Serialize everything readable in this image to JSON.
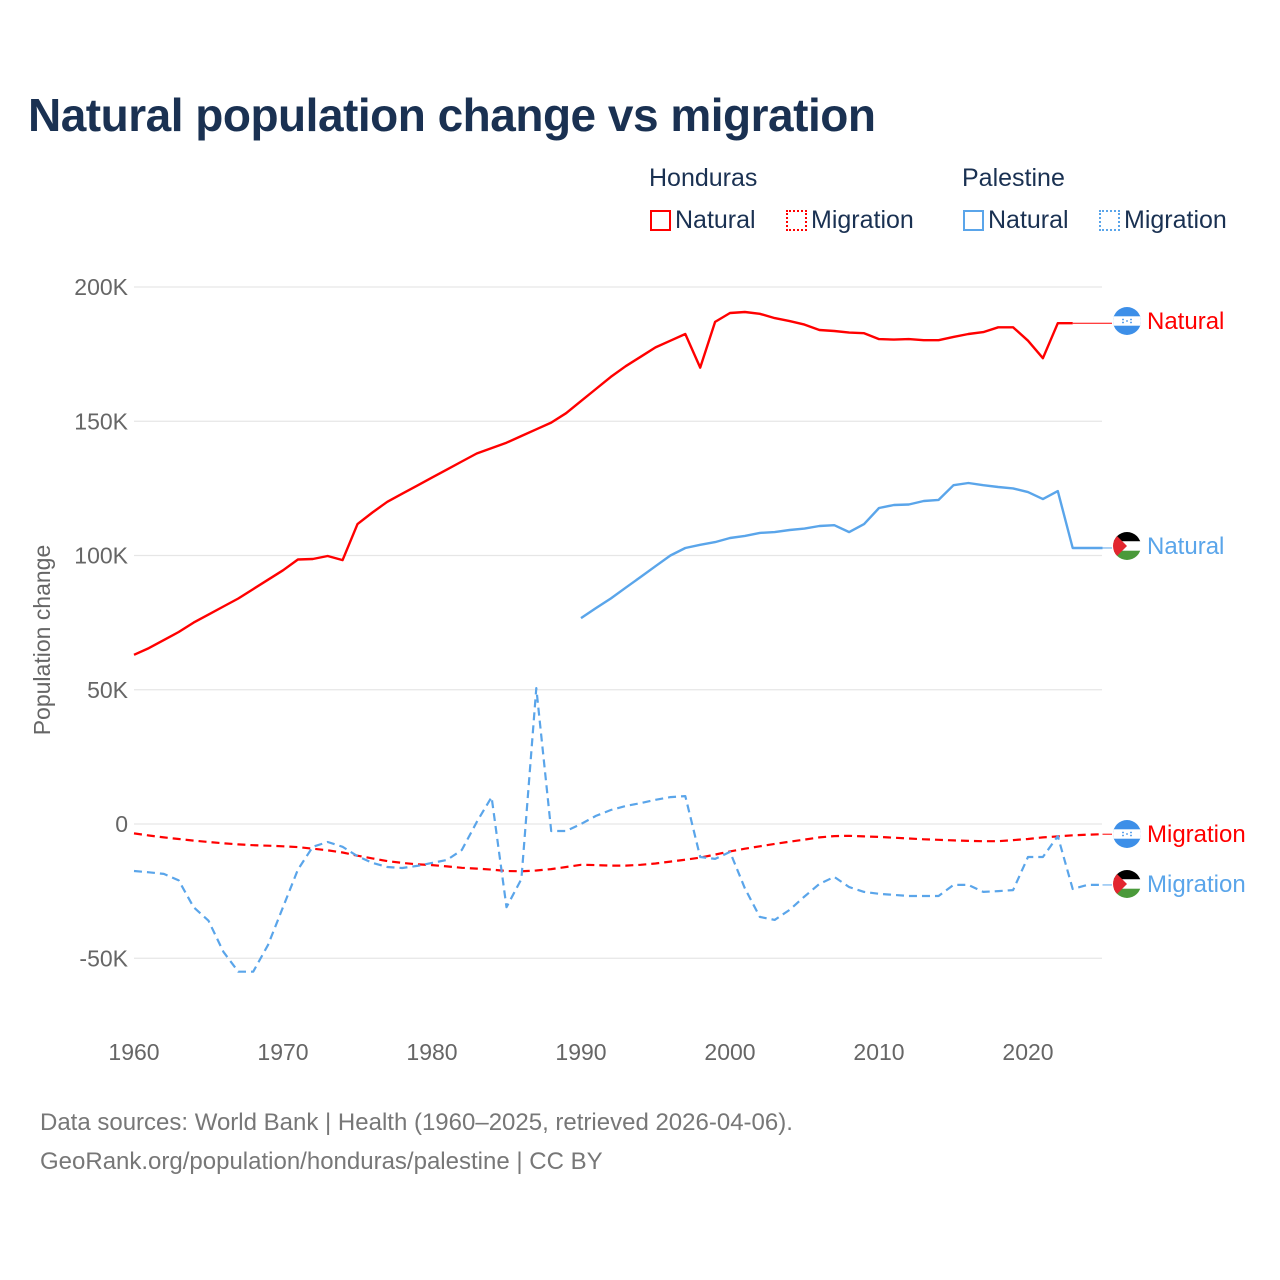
{
  "title": "Natural population change vs migration",
  "legend": {
    "groups": [
      {
        "name": "Honduras",
        "items": [
          "Natural",
          "Migration"
        ]
      },
      {
        "name": "Palestine",
        "items": [
          "Natural",
          "Migration"
        ]
      }
    ]
  },
  "footer": {
    "line1": "Data sources: World Bank | Health (1960–2025, retrieved 2026-04-06).",
    "line2": "GeoRank.org/population/honduras/palestine | CC BY"
  },
  "colors": {
    "honduras": "#ff0000",
    "palestine": "#5aa5ea"
  },
  "chart_data": {
    "type": "line",
    "title": "Natural population change vs migration",
    "xlabel": "",
    "ylabel": "Population change",
    "xlim": [
      1960,
      2025
    ],
    "ylim": [
      -75000,
      200000
    ],
    "x_ticks": [
      "1960",
      "1970",
      "1980",
      "1990",
      "2000",
      "2010",
      "2020"
    ],
    "y_ticks": [
      {
        "v": 200,
        "label": "200K"
      },
      {
        "v": 150,
        "label": "150K"
      },
      {
        "v": 100,
        "label": "100K"
      },
      {
        "v": 50,
        "label": "50K"
      },
      {
        "v": 0,
        "label": "0"
      },
      {
        "v": -50,
        "label": "-50K"
      }
    ],
    "units": "thousands",
    "series": [
      {
        "name": "Honduras Natural",
        "label": "Natural",
        "country": "honduras",
        "style": "solid",
        "start_year": 1960,
        "values": [
          63,
          65.5,
          68.5,
          71.5,
          75,
          78,
          81,
          84,
          87.5,
          91,
          94.5,
          98.5,
          98.7,
          99.8,
          98.3,
          111.7,
          116,
          120,
          123,
          126,
          129,
          132,
          135,
          138,
          140,
          142,
          144.5,
          147,
          149.5,
          153,
          157.5,
          162,
          166.5,
          170.5,
          174,
          177.5,
          180,
          182.5,
          170,
          187,
          190.3,
          190.7,
          190,
          188.4,
          187.3,
          186,
          184,
          183.6,
          183,
          182.8,
          180.6,
          180.4,
          180.6,
          180.2,
          180.2,
          181.4,
          182.5,
          183.2,
          185,
          185,
          180,
          173.5,
          186.5,
          186.5
        ]
      },
      {
        "name": "Palestine Natural",
        "label": "Natural",
        "country": "palestine",
        "style": "solid",
        "start_year": 1990,
        "values": [
          76.7,
          80.4,
          84,
          88,
          92,
          96,
          100,
          102.8,
          104,
          105,
          106.5,
          107.3,
          108.4,
          108.7,
          109.5,
          110,
          111,
          111.3,
          108.7,
          111.7,
          117.7,
          118.8,
          119,
          120.3,
          120.7,
          126.2,
          127,
          126.2,
          125.5,
          125,
          123.6,
          121,
          124,
          102.8,
          102.8,
          102.8
        ]
      },
      {
        "name": "Honduras Migration",
        "label": "Migration",
        "country": "honduras",
        "style": "dashed",
        "start_year": 1960,
        "values": [
          -3.5,
          -4.3,
          -5.0,
          -5.6,
          -6.2,
          -6.7,
          -7.2,
          -7.6,
          -7.9,
          -8.1,
          -8.3,
          -8.6,
          -9.2,
          -9.8,
          -10.6,
          -11.8,
          -12.8,
          -13.8,
          -14.5,
          -15.0,
          -15.3,
          -15.8,
          -16.3,
          -16.6,
          -17.0,
          -17.5,
          -17.6,
          -17.3,
          -16.8,
          -16.0,
          -15.2,
          -15.3,
          -15.5,
          -15.5,
          -15.2,
          -14.7,
          -14.0,
          -13.3,
          -12.5,
          -11.4,
          -10.2,
          -9.2,
          -8.3,
          -7.4,
          -6.6,
          -5.8,
          -5.0,
          -4.5,
          -4.4,
          -4.6,
          -4.8,
          -5.1,
          -5.4,
          -5.7,
          -5.9,
          -6.1,
          -6.3,
          -6.4,
          -6.4,
          -6.0,
          -5.6,
          -5.0,
          -4.6,
          -4.2,
          -4.0,
          -3.8
        ]
      },
      {
        "name": "Palestine Migration",
        "label": "Migration",
        "country": "palestine",
        "style": "dashed",
        "start_year": 1960,
        "values": [
          -17.5,
          -18,
          -18.6,
          -21,
          -31,
          -36,
          -47.6,
          -55,
          -55,
          -45,
          -31,
          -17,
          -8.5,
          -6.7,
          -8.5,
          -12,
          -14.5,
          -16,
          -16.4,
          -15.6,
          -14.5,
          -13.4,
          -9.7,
          0.7,
          10,
          -31,
          -20.5,
          50.6,
          -2.6,
          -2.6,
          0,
          3,
          5.2,
          6.7,
          7.8,
          9,
          10,
          10.4,
          -12.3,
          -13,
          -10.4,
          -24,
          -34.6,
          -35.7,
          -32,
          -27,
          -22.3,
          -19.7,
          -23.5,
          -25.3,
          -26,
          -26.4,
          -26.8,
          -26.8,
          -26.8,
          -22.7,
          -22.7,
          -25.3,
          -25,
          -24.6,
          -12.3,
          -12.3,
          -4.5,
          -24.2,
          -22.7,
          -22.7
        ]
      }
    ],
    "grid": true,
    "legend_position": "top-right"
  }
}
